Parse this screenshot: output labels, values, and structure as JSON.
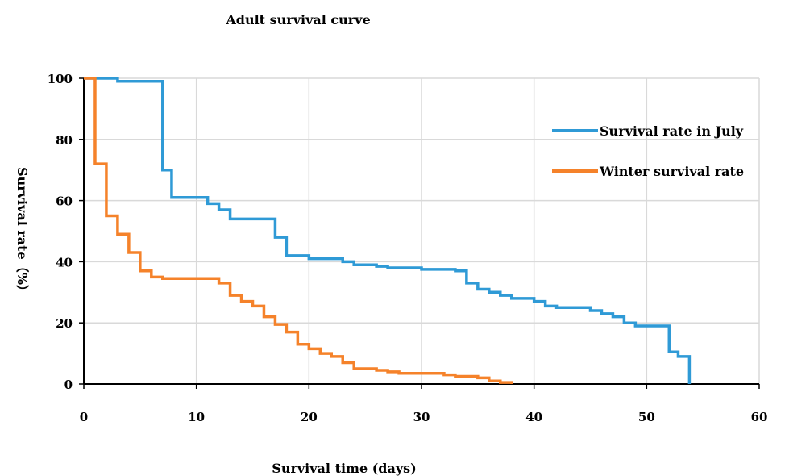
{
  "chart_data": {
    "type": "line",
    "title": "Adult survival curve",
    "xlabel": "Survival time (days)",
    "ylabel": "Survival rate（%）",
    "xlim": [
      0,
      60
    ],
    "ylim": [
      0,
      100
    ],
    "xticks": [
      0,
      10,
      20,
      30,
      40,
      50,
      60
    ],
    "yticks": [
      0,
      20,
      40,
      60,
      80,
      100
    ],
    "grid": true,
    "legend_position": "top-right",
    "series": [
      {
        "name": "Survival rate in July",
        "color": "#2f9ad6",
        "x": [
          0,
          3,
          7,
          7.8,
          11,
          12,
          13,
          17,
          18,
          20,
          23,
          24,
          26,
          27,
          30,
          33,
          34,
          35,
          36,
          37,
          38,
          40,
          41,
          42,
          45,
          46,
          47,
          48,
          49,
          52,
          52.8,
          53.8
        ],
        "y": [
          100,
          99,
          70,
          61,
          59,
          57,
          54,
          48,
          42,
          41,
          40,
          39,
          38.5,
          38,
          37.5,
          37,
          33,
          31,
          30,
          29,
          28,
          27,
          25.5,
          25,
          24,
          23,
          22,
          20,
          19,
          10.5,
          9,
          0
        ]
      },
      {
        "name": "Winter survival rate",
        "color": "#f5822a",
        "x": [
          0,
          1,
          2,
          3,
          4,
          5,
          6,
          7,
          12,
          13,
          14,
          15,
          16,
          17,
          18,
          19,
          20,
          21,
          22,
          23,
          24,
          26,
          27,
          28,
          32,
          33,
          35,
          36,
          37,
          38
        ],
        "y": [
          100,
          72,
          55,
          49,
          43,
          37,
          35,
          34.5,
          33,
          29,
          27,
          25.5,
          22,
          19.5,
          17,
          13,
          11.5,
          10,
          9,
          7,
          5,
          4.5,
          4,
          3.5,
          3,
          2.5,
          2,
          1,
          0.5,
          0
        ]
      }
    ]
  }
}
